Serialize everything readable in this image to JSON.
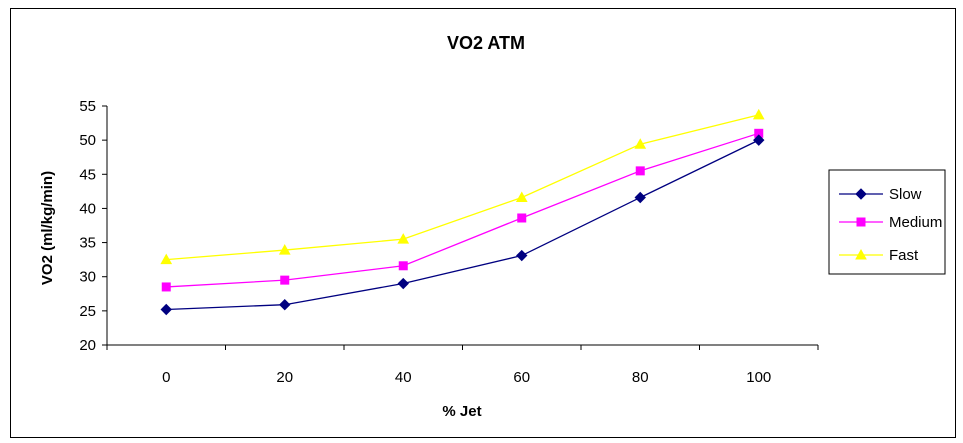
{
  "chart_data": {
    "type": "line",
    "title": "VO2 ATM",
    "xlabel": "% Jet",
    "ylabel": "VO2 (ml/kg/min)",
    "categories": [
      "0",
      "20",
      "40",
      "60",
      "80",
      "100"
    ],
    "ylim": [
      20,
      55
    ],
    "yticks": [
      "20",
      "25",
      "30",
      "35",
      "40",
      "45",
      "50",
      "55"
    ],
    "grid": false,
    "legend_position": "right",
    "series": [
      {
        "name": "Slow",
        "values": [
          25.2,
          25.9,
          29.0,
          33.1,
          41.6,
          50.0
        ],
        "color": "#000080",
        "marker": "diamond"
      },
      {
        "name": "Medium",
        "values": [
          28.5,
          29.5,
          31.6,
          38.6,
          45.5,
          51.0
        ],
        "color": "#FF00FF",
        "marker": "square"
      },
      {
        "name": "Fast",
        "values": [
          32.5,
          33.9,
          35.5,
          41.6,
          49.4,
          53.7
        ],
        "color": "#FFFF00",
        "marker": "triangle"
      }
    ]
  }
}
